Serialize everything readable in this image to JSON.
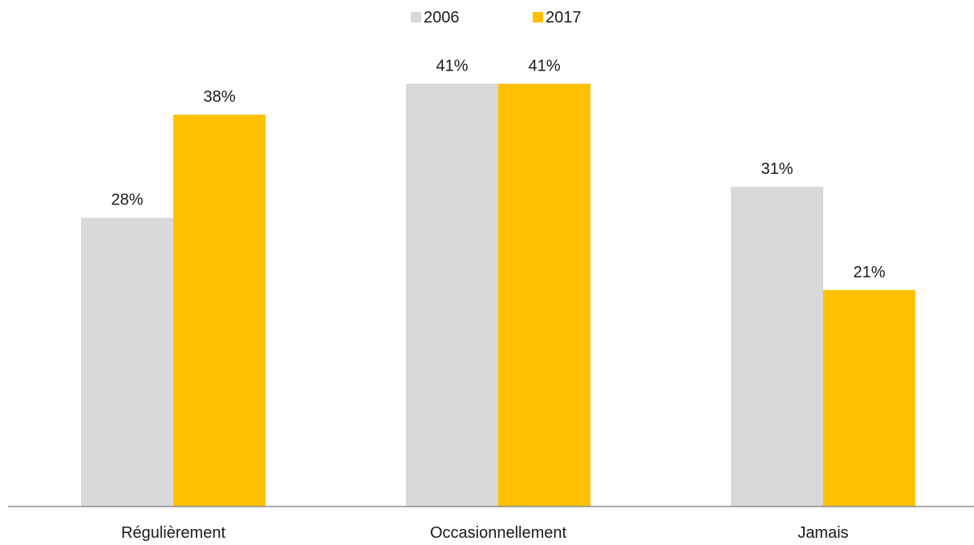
{
  "chart_data": {
    "type": "bar",
    "categories": [
      "Régulièrement",
      "Occasionnellement",
      "Jamais"
    ],
    "series": [
      {
        "name": "2006",
        "values": [
          28,
          41,
          31
        ],
        "labels": [
          "28%",
          "41%",
          "31%"
        ],
        "color": "#d9d9d9"
      },
      {
        "name": "2017",
        "values": [
          38,
          41,
          21
        ],
        "labels": [
          "38%",
          "41%",
          "21%"
        ],
        "color": "#ffc000"
      }
    ],
    "ylim": [
      0,
      45
    ],
    "unit": "%",
    "grid": false,
    "legend_position": "top-center",
    "axis_color": "#8c8c8c"
  }
}
